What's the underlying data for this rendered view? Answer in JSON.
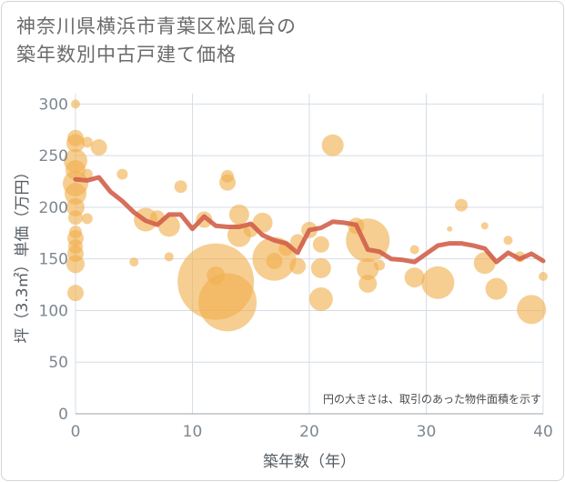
{
  "title_line1": "神奈川県横浜市青葉区松風台の",
  "title_line2": "築年数別中古戸建て価格",
  "chart_data": {
    "type": "scatter",
    "title": "神奈川県横浜市青葉区松風台の築年数別中古戸建て価格",
    "xlabel": "築年数（年）",
    "ylabel": "坪（3.3㎡）単価（万円）",
    "xlim": [
      0,
      40
    ],
    "ylim": [
      0,
      310
    ],
    "xticks": [
      0,
      10,
      20,
      30,
      40
    ],
    "yticks": [
      0,
      50,
      100,
      150,
      200,
      250,
      300
    ],
    "note": "円の大きさは、取引のあった物件面積を示す",
    "colors": {
      "bubble": "#f0b04f",
      "line": "#d2614a",
      "grid": "#d7dde6"
    },
    "bubbles": [
      {
        "x": 0,
        "y": 300,
        "r": 5
      },
      {
        "x": 0,
        "y": 267,
        "r": 9
      },
      {
        "x": 0,
        "y": 262,
        "r": 10
      },
      {
        "x": 0,
        "y": 245,
        "r": 13
      },
      {
        "x": 0,
        "y": 236,
        "r": 11
      },
      {
        "x": 0,
        "y": 223,
        "r": 14
      },
      {
        "x": 0,
        "y": 213,
        "r": 12
      },
      {
        "x": 0,
        "y": 200,
        "r": 10
      },
      {
        "x": 0,
        "y": 190,
        "r": 8
      },
      {
        "x": 0,
        "y": 176,
        "r": 7
      },
      {
        "x": 0,
        "y": 170,
        "r": 9
      },
      {
        "x": 0,
        "y": 162,
        "r": 8
      },
      {
        "x": 0,
        "y": 155,
        "r": 9
      },
      {
        "x": 0,
        "y": 145,
        "r": 10
      },
      {
        "x": 0,
        "y": 117,
        "r": 9
      },
      {
        "x": 1,
        "y": 263,
        "r": 6
      },
      {
        "x": 1,
        "y": 232,
        "r": 6
      },
      {
        "x": 1,
        "y": 189,
        "r": 6
      },
      {
        "x": 2,
        "y": 258,
        "r": 9
      },
      {
        "x": 4,
        "y": 232,
        "r": 6
      },
      {
        "x": 5,
        "y": 147,
        "r": 5
      },
      {
        "x": 6,
        "y": 188,
        "r": 13
      },
      {
        "x": 7,
        "y": 190,
        "r": 8
      },
      {
        "x": 8,
        "y": 182,
        "r": 12
      },
      {
        "x": 8,
        "y": 152,
        "r": 5
      },
      {
        "x": 9,
        "y": 220,
        "r": 7
      },
      {
        "x": 11,
        "y": 188,
        "r": 9
      },
      {
        "x": 12,
        "y": 128,
        "r": 42
      },
      {
        "x": 12,
        "y": 134,
        "r": 10
      },
      {
        "x": 13,
        "y": 108,
        "r": 32
      },
      {
        "x": 13,
        "y": 230,
        "r": 7
      },
      {
        "x": 13,
        "y": 224,
        "r": 9
      },
      {
        "x": 14,
        "y": 193,
        "r": 11
      },
      {
        "x": 14,
        "y": 173,
        "r": 13
      },
      {
        "x": 15,
        "y": 178,
        "r": 8
      },
      {
        "x": 16,
        "y": 185,
        "r": 11
      },
      {
        "x": 17,
        "y": 150,
        "r": 24
      },
      {
        "x": 17,
        "y": 148,
        "r": 9
      },
      {
        "x": 18,
        "y": 160,
        "r": 8
      },
      {
        "x": 19,
        "y": 143,
        "r": 9
      },
      {
        "x": 19,
        "y": 167,
        "r": 8
      },
      {
        "x": 20,
        "y": 178,
        "r": 9
      },
      {
        "x": 21,
        "y": 111,
        "r": 13
      },
      {
        "x": 21,
        "y": 141,
        "r": 11
      },
      {
        "x": 21,
        "y": 164,
        "r": 9
      },
      {
        "x": 22,
        "y": 260,
        "r": 12
      },
      {
        "x": 24,
        "y": 182,
        "r": 9
      },
      {
        "x": 25,
        "y": 168,
        "r": 24
      },
      {
        "x": 25,
        "y": 140,
        "r": 12
      },
      {
        "x": 25,
        "y": 126,
        "r": 10
      },
      {
        "x": 26,
        "y": 144,
        "r": 6
      },
      {
        "x": 29,
        "y": 159,
        "r": 5
      },
      {
        "x": 29,
        "y": 132,
        "r": 11
      },
      {
        "x": 31,
        "y": 127,
        "r": 18
      },
      {
        "x": 32,
        "y": 179,
        "r": 3
      },
      {
        "x": 33,
        "y": 202,
        "r": 7
      },
      {
        "x": 35,
        "y": 146,
        "r": 12
      },
      {
        "x": 35,
        "y": 182,
        "r": 4
      },
      {
        "x": 36,
        "y": 121,
        "r": 12
      },
      {
        "x": 37,
        "y": 168,
        "r": 5
      },
      {
        "x": 38,
        "y": 152,
        "r": 6
      },
      {
        "x": 39,
        "y": 101,
        "r": 16
      },
      {
        "x": 40,
        "y": 133,
        "r": 5
      }
    ],
    "trend": {
      "x": [
        0,
        1,
        2,
        3,
        4,
        5,
        6,
        7,
        8,
        9,
        10,
        11,
        12,
        13,
        14,
        15,
        16,
        17,
        18,
        19,
        20,
        21,
        22,
        23,
        24,
        25,
        26,
        27,
        28,
        29,
        30,
        31,
        32,
        33,
        34,
        35,
        36,
        37,
        38,
        39,
        40
      ],
      "y": [
        227,
        226,
        229,
        215,
        206,
        195,
        187,
        183,
        193,
        193,
        179,
        191,
        182,
        181,
        181,
        184,
        173,
        168,
        165,
        156,
        178,
        180,
        186,
        185,
        183,
        159,
        157,
        150,
        149,
        147,
        155,
        163,
        165,
        165,
        163,
        160,
        147,
        156,
        150,
        155,
        148
      ]
    }
  }
}
